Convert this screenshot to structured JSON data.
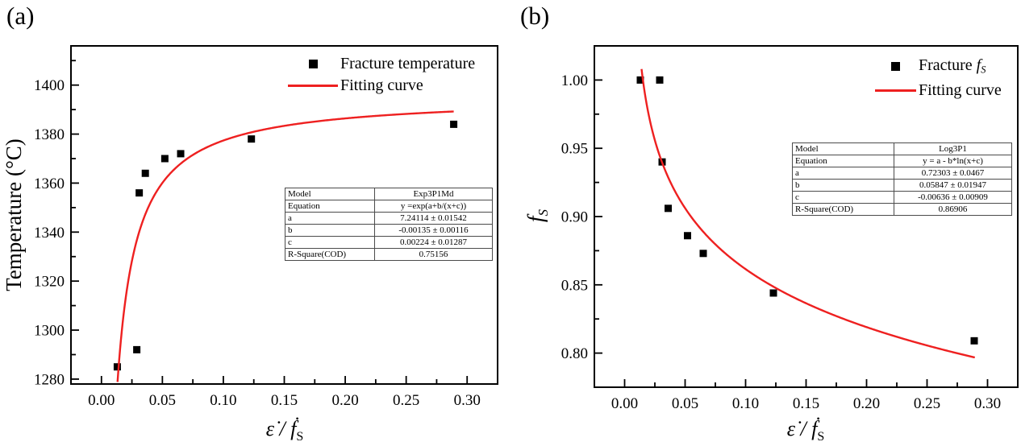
{
  "panels": [
    {
      "tag": "(a)"
    },
    {
      "tag": "(b)"
    }
  ],
  "colors": {
    "fit_line": "#ee2020",
    "marker": "#000000",
    "axis": "#000000"
  },
  "chart_data": [
    {
      "type": "scatter",
      "panel": "a",
      "title": "",
      "xlabel": "ε̇ / ḟS",
      "ylabel": "Temperature (°C)",
      "xlabel_runs": [
        {
          "t": "ε̇",
          "i": 1
        },
        {
          "t": " / ",
          "i": 1
        },
        {
          "t": "ḟ",
          "i": 1
        },
        {
          "t": "S",
          "sub": 1
        }
      ],
      "ylabel_runs": [
        {
          "t": "Temperature (°C)"
        }
      ],
      "xlim": [
        -0.025,
        0.325
      ],
      "ylim": [
        1278,
        1416
      ],
      "grid": false,
      "x_major_ticks": [
        0.0,
        0.05,
        0.1,
        0.15,
        0.2,
        0.25,
        0.3
      ],
      "x_tick_labels": [
        "0.00",
        "0.05",
        "0.10",
        "0.15",
        "0.20",
        "0.25",
        "0.30"
      ],
      "y_major_ticks": [
        1280,
        1300,
        1320,
        1340,
        1360,
        1380,
        1400
      ],
      "y_tick_labels": [
        "1280",
        "1300",
        "1320",
        "1340",
        "1360",
        "1380",
        "1400"
      ],
      "series": [
        {
          "name": "Fracture temperature",
          "type": "scatter",
          "marker": "square",
          "color": "#000000",
          "points": [
            [
              0.013,
              1285
            ],
            [
              0.029,
              1292
            ],
            [
              0.031,
              1356
            ],
            [
              0.036,
              1364
            ],
            [
              0.052,
              1370
            ],
            [
              0.065,
              1372
            ],
            [
              0.123,
              1378
            ],
            [
              0.289,
              1384
            ]
          ]
        },
        {
          "name": "Fitting curve",
          "type": "line",
          "color": "#ee2020",
          "model": "exp3p1md",
          "equation": "y =exp(a+b/(x+c))",
          "params": {
            "a": 7.24114,
            "b": -0.00135,
            "c": 0.00224
          },
          "x_range": [
            0.0132,
            0.289
          ]
        }
      ],
      "legend": {
        "entries": [
          {
            "marker": "square",
            "label": "Fracture temperature",
            "label_runs": [
              {
                "t": "Fracture temperature"
              }
            ]
          },
          {
            "marker": "line",
            "label": "Fitting curve",
            "label_runs": [
              {
                "t": "Fitting curve"
              }
            ]
          }
        ]
      },
      "fit_table": {
        "rows": [
          [
            "Model",
            "Exp3P1Md"
          ],
          [
            "Equation",
            "y =exp(a+b/(x+c))"
          ],
          [
            "a",
            "7.24114 ± 0.01542"
          ],
          [
            "b",
            "-0.00135 ± 0.00116"
          ],
          [
            "c",
            "0.00224 ± 0.01287"
          ],
          [
            "R-Square(COD)",
            "0.75156"
          ]
        ]
      }
    },
    {
      "type": "scatter",
      "panel": "b",
      "title": "",
      "xlabel": "ε̇ / ḟS",
      "ylabel": "fS",
      "xlabel_runs": [
        {
          "t": "ε̇",
          "i": 1
        },
        {
          "t": " / ",
          "i": 1
        },
        {
          "t": "ḟ",
          "i": 1
        },
        {
          "t": "S",
          "sub": 1
        }
      ],
      "ylabel_runs": [
        {
          "t": "f",
          "i": 1
        },
        {
          "t": "S",
          "sub": 1,
          "i": 1
        }
      ],
      "xlim": [
        -0.025,
        0.325
      ],
      "ylim": [
        0.775,
        1.025
      ],
      "grid": false,
      "x_major_ticks": [
        0.0,
        0.05,
        0.1,
        0.15,
        0.2,
        0.25,
        0.3
      ],
      "x_tick_labels": [
        "0.00",
        "0.05",
        "0.10",
        "0.15",
        "0.20",
        "0.25",
        "0.30"
      ],
      "y_major_ticks": [
        0.8,
        0.85,
        0.9,
        0.95,
        1.0
      ],
      "y_tick_labels": [
        "0.80",
        "0.85",
        "0.90",
        "0.95",
        "1.00"
      ],
      "series": [
        {
          "name": "Fracture fS",
          "type": "scatter",
          "marker": "square",
          "color": "#000000",
          "points": [
            [
              0.013,
              1.0
            ],
            [
              0.029,
              1.0
            ],
            [
              0.031,
              0.94
            ],
            [
              0.036,
              0.906
            ],
            [
              0.052,
              0.886
            ],
            [
              0.065,
              0.873
            ],
            [
              0.123,
              0.844
            ],
            [
              0.289,
              0.809
            ]
          ]
        },
        {
          "name": "Fitting curve",
          "type": "line",
          "color": "#ee2020",
          "model": "log3p1",
          "equation": "y = a - b*ln(x+c)",
          "params": {
            "a": 0.72303,
            "b": 0.05847,
            "c": -0.00636
          },
          "x_range": [
            0.014,
            0.2895
          ]
        }
      ],
      "legend": {
        "entries": [
          {
            "marker": "square",
            "label": "Fracture fS",
            "label_runs": [
              {
                "t": "Fracture "
              },
              {
                "t": "f",
                "i": 1
              },
              {
                "t": "S",
                "sub": 1,
                "i": 1
              }
            ]
          },
          {
            "marker": "line",
            "label": "Fitting curve",
            "label_runs": [
              {
                "t": "Fitting curve"
              }
            ]
          }
        ]
      },
      "fit_table": {
        "rows": [
          [
            "Model",
            "Log3P1"
          ],
          [
            "Equation",
            "y = a - b*ln(x+c)"
          ],
          [
            "a",
            "0.72303 ± 0.0467"
          ],
          [
            "b",
            "0.05847 ± 0.01947"
          ],
          [
            "c",
            "-0.00636 ± 0.00909"
          ],
          [
            "R-Square(COD)",
            "0.86906"
          ]
        ]
      }
    }
  ]
}
